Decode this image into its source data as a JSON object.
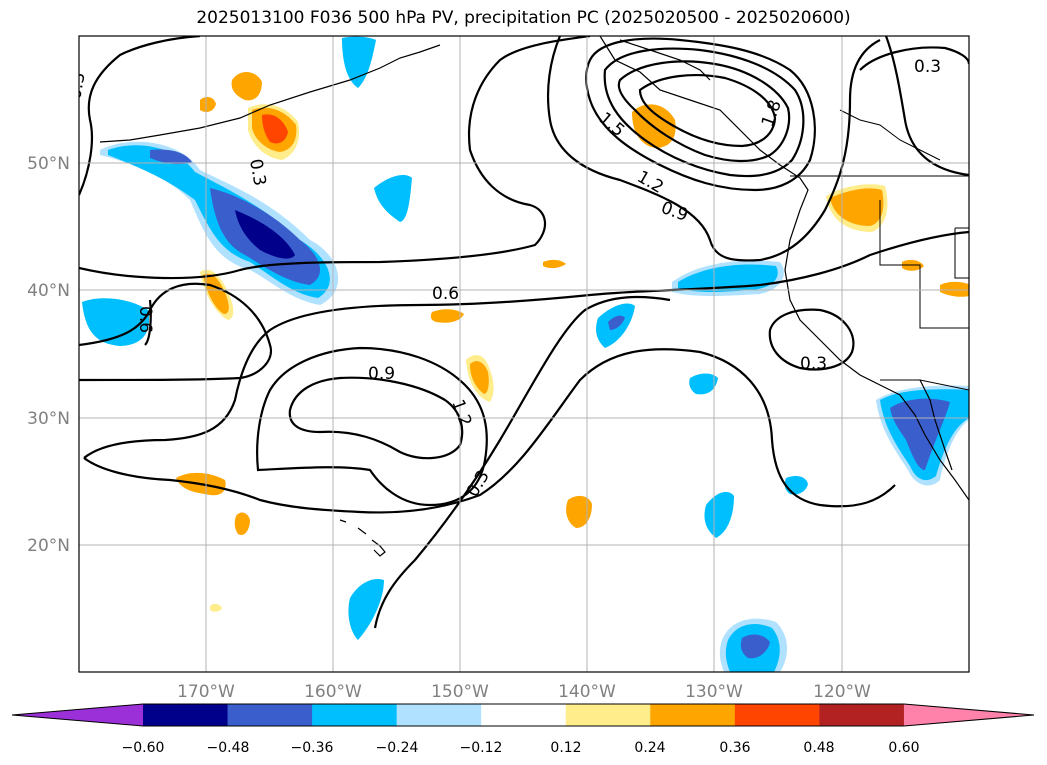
{
  "title": "2025013100 F036 500 hPa PV, precipitation PC (2025020500 - 2025020600)",
  "map": {
    "lon_labels": [
      "170°W",
      "160°W",
      "150°W",
      "140°W",
      "130°W",
      "120°W"
    ],
    "lat_labels": [
      "50°N",
      "40°N",
      "30°N",
      "20°N"
    ],
    "contour_labels": [
      "0.3",
      "0.3",
      "0.6",
      "0.9",
      "1.2",
      "0.3",
      "0.3",
      "1.5",
      "1.2",
      "0.9",
      "1.8",
      "0.3",
      "0.6"
    ],
    "gridlines": true
  },
  "colorbar": {
    "ticks": [
      "−0.60",
      "−0.48",
      "−0.36",
      "−0.24",
      "−0.12",
      "0.12",
      "0.24",
      "0.36",
      "0.48",
      "0.60"
    ],
    "colors": [
      "#9b30d9",
      "#00008b",
      "#3a5fcd",
      "#00bfff",
      "#b0e2ff",
      "#ffffff",
      "#ffec8b",
      "#ffa500",
      "#ff4500",
      "#b22222",
      "#ff82ab"
    ],
    "extend": "both"
  }
}
